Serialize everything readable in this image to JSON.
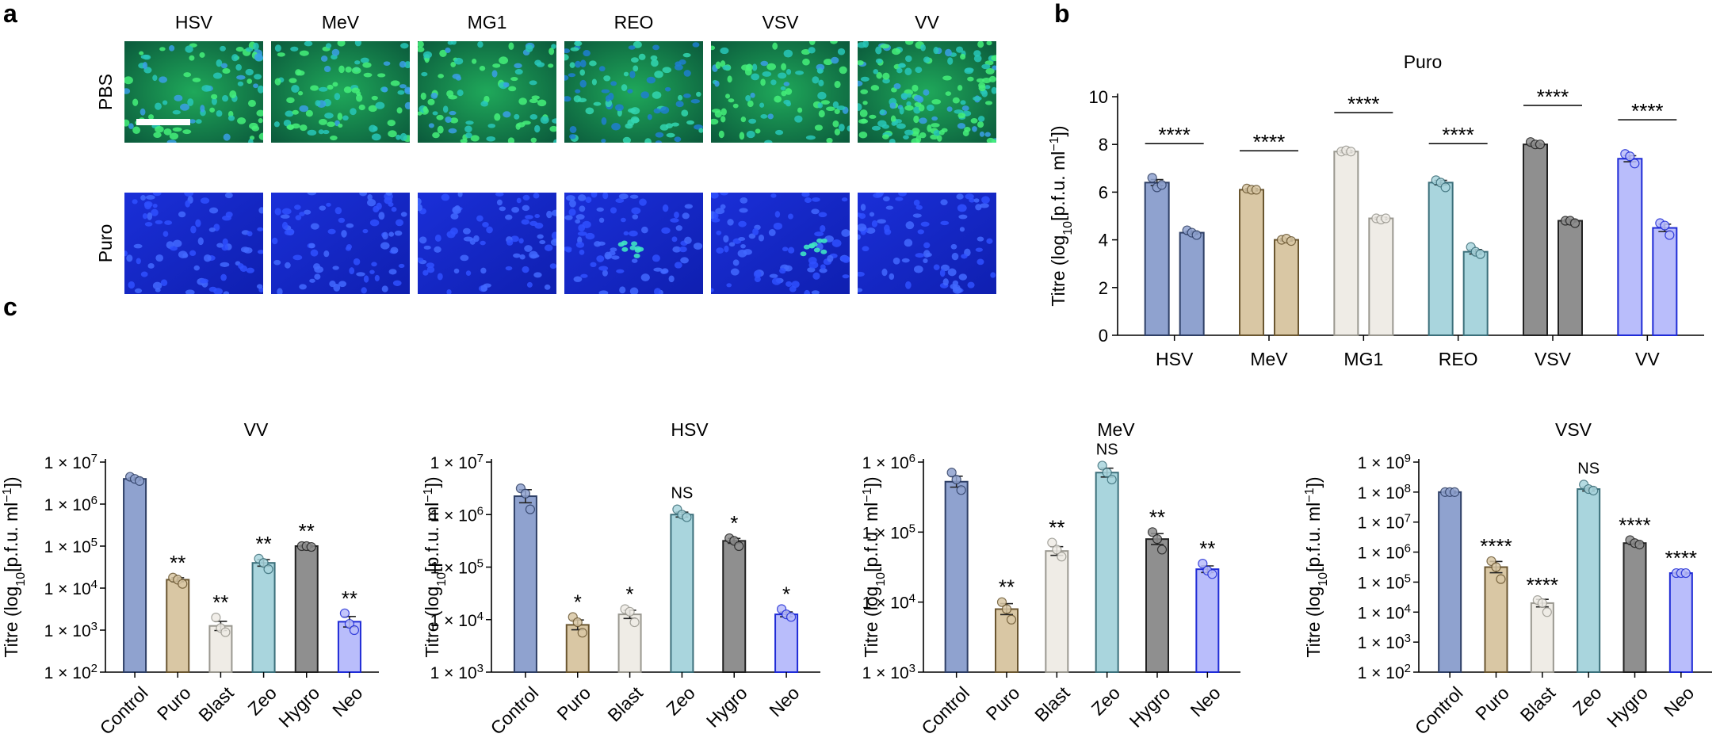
{
  "figure": {
    "panel_labels": [
      "a",
      "b",
      "c"
    ],
    "panel_a": {
      "columns": [
        "HSV",
        "MeV",
        "MG1",
        "REO",
        "VSV",
        "VV"
      ],
      "rows": [
        "PBS",
        "Puro"
      ]
    }
  },
  "chart_data": [
    {
      "id": "b",
      "type": "bar",
      "title": "Puro",
      "ylabel": "Titre (log10[p.f.u. ml−1])",
      "yscale": "linear",
      "ylim": [
        0,
        10
      ],
      "yticks": [
        "0",
        "2",
        "4",
        "6",
        "8",
        "10"
      ],
      "categories": [
        "HSV",
        "MeV",
        "MG1",
        "REO",
        "VSV",
        "VV"
      ],
      "colors": [
        "#8fa2cf",
        "#d9c7a4",
        "#efece6",
        "#a9d5dd",
        "#8f8f8f",
        "#b9bdfb"
      ],
      "edges": [
        "#2e3f66",
        "#6a5630",
        "#9a9890",
        "#3b6f7a",
        "#222222",
        "#1f2bd6"
      ],
      "series": [
        {
          "name": "PBS",
          "values": [
            6.4,
            6.1,
            7.7,
            6.4,
            8.0,
            7.4
          ],
          "points": [
            [
              6.6,
              6.2,
              6.3
            ],
            [
              6.15,
              6.1,
              6.1
            ],
            [
              7.7,
              7.75,
              7.7
            ],
            [
              6.5,
              6.4,
              6.2
            ],
            [
              8.1,
              8.0,
              8.0
            ],
            [
              7.6,
              7.5,
              7.2
            ]
          ]
        },
        {
          "name": "Puro",
          "values": [
            4.3,
            4.0,
            4.9,
            3.5,
            4.8,
            4.5
          ],
          "points": [
            [
              4.4,
              4.3,
              4.2
            ],
            [
              4.0,
              4.05,
              3.95
            ],
            [
              4.9,
              4.85,
              4.9
            ],
            [
              3.7,
              3.5,
              3.4
            ],
            [
              4.8,
              4.8,
              4.7
            ],
            [
              4.7,
              4.6,
              4.2
            ]
          ]
        }
      ],
      "significance": [
        "****",
        "****",
        "****",
        "****",
        "****",
        "****"
      ]
    },
    {
      "id": "c1",
      "type": "bar",
      "title": "VV",
      "ylabel": "Titre (log10[p.f.u. ml−1])",
      "yscale": "log",
      "ylim": [
        2,
        7
      ],
      "ytick_exps": [
        "2",
        "3",
        "4",
        "5",
        "6",
        "7"
      ],
      "categories": [
        "Control",
        "Puro",
        "Blast",
        "Zeo",
        "Hygro",
        "Neo"
      ],
      "colors": [
        "#8fa2cf",
        "#d9c7a4",
        "#efece6",
        "#a9d5dd",
        "#8f8f8f",
        "#b9bdfb"
      ],
      "edges": [
        "#2e3f66",
        "#6a5630",
        "#9a9890",
        "#3b6f7a",
        "#222222",
        "#1f2bd6"
      ],
      "values_log10": [
        6.6,
        4.2,
        3.1,
        4.6,
        5.0,
        3.2
      ],
      "points_log10": [
        [
          6.65,
          6.6,
          6.55
        ],
        [
          4.25,
          4.2,
          4.1
        ],
        [
          3.3,
          3.05,
          2.95
        ],
        [
          4.7,
          4.6,
          4.45
        ],
        [
          5.0,
          5.0,
          4.98
        ],
        [
          3.4,
          3.15,
          3.0
        ]
      ],
      "significance": [
        "",
        "**",
        "**",
        "**",
        "**",
        "**"
      ]
    },
    {
      "id": "c2",
      "type": "bar",
      "title": "HSV",
      "ylabel": "Titre (log10[p.f.u. ml−1])",
      "yscale": "log",
      "ylim": [
        3,
        7
      ],
      "ytick_exps": [
        "3",
        "4",
        "5",
        "6",
        "7"
      ],
      "categories": [
        "Control",
        "Puro",
        "Blast",
        "Zeo",
        "Hygro",
        "Neo"
      ],
      "colors": [
        "#8fa2cf",
        "#d9c7a4",
        "#efece6",
        "#a9d5dd",
        "#8f8f8f",
        "#b9bdfb"
      ],
      "edges": [
        "#2e3f66",
        "#6a5630",
        "#9a9890",
        "#3b6f7a",
        "#222222",
        "#1f2bd6"
      ],
      "values_log10": [
        6.35,
        3.9,
        4.1,
        6.0,
        5.5,
        4.1
      ],
      "points_log10": [
        [
          6.5,
          6.4,
          6.1
        ],
        [
          4.05,
          3.95,
          3.75
        ],
        [
          4.2,
          4.15,
          3.95
        ],
        [
          6.1,
          6.0,
          5.95
        ],
        [
          5.55,
          5.5,
          5.4
        ],
        [
          4.2,
          4.1,
          4.05
        ]
      ],
      "significance": [
        "",
        "*",
        "*",
        "NS",
        "*",
        "*"
      ]
    },
    {
      "id": "c3",
      "type": "bar",
      "title": "MeV",
      "ylabel": "Titre (log10[p.f.u. ml−1])",
      "yscale": "log",
      "ylim": [
        3,
        6
      ],
      "ytick_exps": [
        "3",
        "4",
        "5",
        "6"
      ],
      "categories": [
        "Control",
        "Puro",
        "Blast",
        "Zeo",
        "Hygro",
        "Neo"
      ],
      "colors": [
        "#8fa2cf",
        "#d9c7a4",
        "#efece6",
        "#a9d5dd",
        "#8f8f8f",
        "#b9bdfb"
      ],
      "edges": [
        "#2e3f66",
        "#6a5630",
        "#9a9890",
        "#3b6f7a",
        "#222222",
        "#1f2bd6"
      ],
      "values_log10": [
        5.72,
        3.9,
        4.73,
        5.85,
        4.9,
        4.47
      ],
      "points_log10": [
        [
          5.85,
          5.75,
          5.6
        ],
        [
          4.0,
          3.9,
          3.75
        ],
        [
          4.85,
          4.75,
          4.65
        ],
        [
          5.95,
          5.85,
          5.75
        ],
        [
          5.0,
          4.9,
          4.75
        ],
        [
          4.55,
          4.45,
          4.4
        ]
      ],
      "significance": [
        "",
        "**",
        "**",
        "NS",
        "**",
        "**"
      ]
    },
    {
      "id": "c4",
      "type": "bar",
      "title": "VSV",
      "ylabel": "Titre (log10[p.f.u. ml−1])",
      "yscale": "log",
      "ylim": [
        2,
        9
      ],
      "ytick_exps": [
        "2",
        "3",
        "4",
        "5",
        "6",
        "7",
        "8",
        "9"
      ],
      "categories": [
        "Control",
        "Puro",
        "Blast",
        "Zeo",
        "Hygro",
        "Neo"
      ],
      "colors": [
        "#8fa2cf",
        "#d9c7a4",
        "#efece6",
        "#a9d5dd",
        "#8f8f8f",
        "#b9bdfb"
      ],
      "edges": [
        "#2e3f66",
        "#6a5630",
        "#9a9890",
        "#3b6f7a",
        "#222222",
        "#1f2bd6"
      ],
      "values_log10": [
        8.0,
        5.5,
        4.3,
        8.1,
        6.3,
        5.3
      ],
      "points_log10": [
        [
          8.0,
          8.0,
          8.0
        ],
        [
          5.7,
          5.5,
          5.1
        ],
        [
          4.4,
          4.3,
          4.0
        ],
        [
          8.25,
          8.1,
          8.05
        ],
        [
          6.4,
          6.3,
          6.25
        ],
        [
          5.3,
          5.3,
          5.3
        ]
      ],
      "significance": [
        "",
        "****",
        "****",
        "NS",
        "****",
        "****"
      ]
    }
  ]
}
